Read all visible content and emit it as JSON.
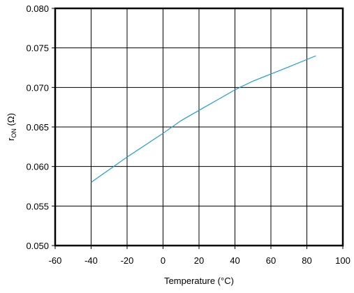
{
  "chart_data": {
    "type": "line",
    "title": "",
    "xlabel": "Temperature (°C)",
    "ylabel": {
      "symbol": "r",
      "subscript": "ON",
      "unit": " (Ω)"
    },
    "xlim": [
      -60,
      100
    ],
    "ylim": [
      0.05,
      0.08
    ],
    "xticks": [
      "-60",
      "-40",
      "-20",
      "0",
      "20",
      "40",
      "60",
      "80",
      "100"
    ],
    "yticks": [
      "0.050",
      "0.055",
      "0.060",
      "0.065",
      "0.070",
      "0.075",
      "0.080"
    ],
    "grid": true,
    "legend": "none",
    "series": [
      {
        "color": "#1a9fd6",
        "x": [
          -40,
          -30,
          -20,
          -10,
          0,
          10,
          20,
          30,
          40,
          50,
          60,
          70,
          85
        ],
        "y": [
          0.058,
          0.0596,
          0.0612,
          0.0627,
          0.0642,
          0.0658,
          0.0671,
          0.0684,
          0.0697,
          0.0708,
          0.0717,
          0.0726,
          0.074
        ]
      }
    ],
    "colors": {
      "frame": "#000000",
      "grid": "#000000",
      "line": "#1a9fd6"
    }
  }
}
